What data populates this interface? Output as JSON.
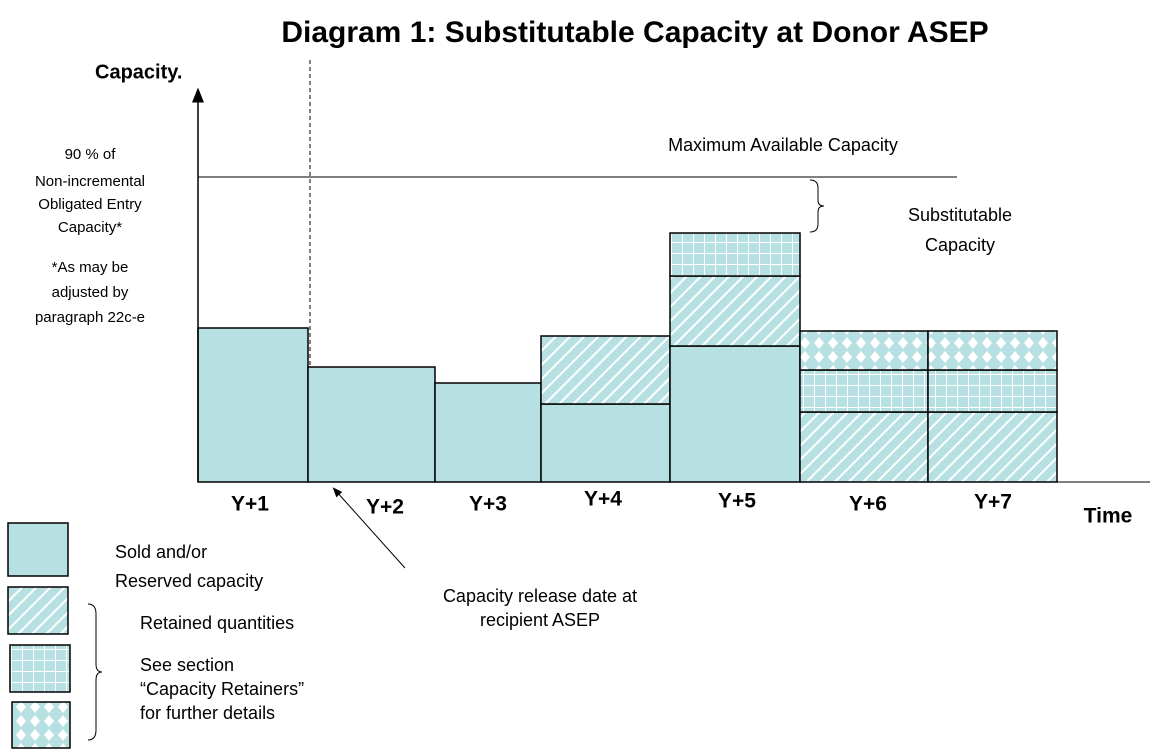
{
  "title": "Diagram 1: Substitutable Capacity at Donor ASEP",
  "y_axis_label": "Capacity.",
  "x_axis_label": "Time",
  "reference_label": [
    "90 % of",
    "Non-incremental",
    "Obligated Entry",
    "Capacity*"
  ],
  "reference_note": [
    "*As may be",
    "adjusted by",
    "paragraph 22c-e"
  ],
  "max_line_label": "Maximum Available Capacity",
  "substitutable_label": [
    "Substitutable",
    "Capacity"
  ],
  "periods": [
    "Y+1",
    "Y+2",
    "Y+3",
    "Y+4",
    "Y+5",
    "Y+6",
    "Y+7"
  ],
  "legend": {
    "sold": [
      "Sold and/or",
      "Reserved capacity"
    ],
    "retained": "Retained quantities",
    "retainers_note": [
      "See section",
      "“Capacity Retainers”",
      "for further details"
    ]
  },
  "annotation": [
    "Capacity release date at",
    "recipient ASEP"
  ]
}
